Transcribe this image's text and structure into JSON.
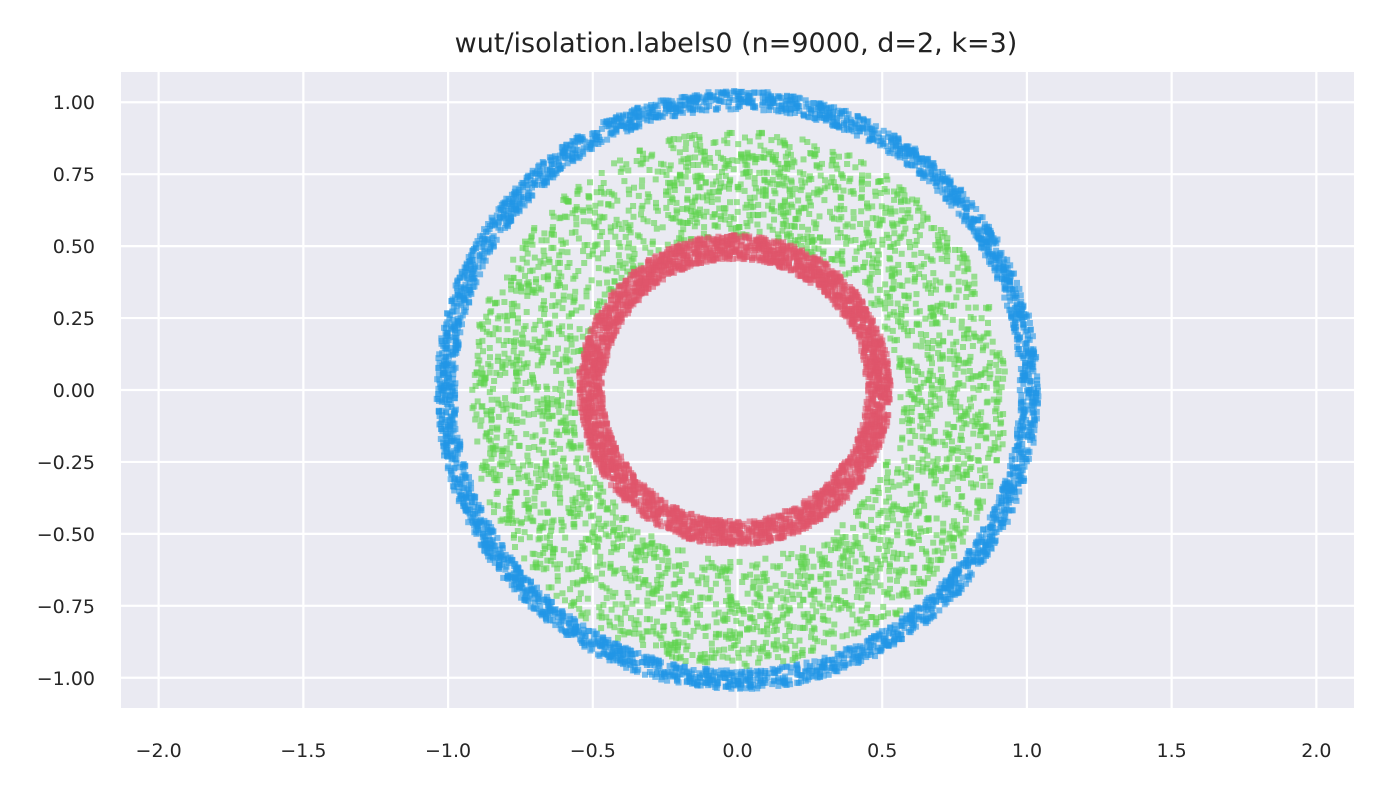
{
  "chart_data": {
    "type": "scatter",
    "title": "wut/isolation.labels0 (n=9000, d=2, k=3)",
    "xlabel": "",
    "ylabel": "",
    "xlim": [
      -2.13,
      2.13
    ],
    "ylim": [
      -1.105,
      1.105
    ],
    "x_ticks": [
      -2.0,
      -1.5,
      -1.0,
      -0.5,
      0.0,
      0.5,
      1.0,
      1.5,
      2.0
    ],
    "x_tick_labels": [
      "−2.0",
      "−1.5",
      "−1.0",
      "−0.5",
      "0.0",
      "0.5",
      "1.0",
      "1.5",
      "2.0"
    ],
    "y_ticks": [
      1.0,
      0.75,
      0.5,
      0.25,
      0.0,
      -0.25,
      -0.5,
      -0.75,
      -1.0
    ],
    "y_tick_labels": [
      "1.00",
      "0.75",
      "0.50",
      "0.25",
      "0.00",
      "−0.25",
      "−0.50",
      "−0.75",
      "−1.00"
    ],
    "grid": true,
    "legend": "none",
    "background_color": "#EAEAF2",
    "grid_color": "#FFFFFF",
    "series": [
      {
        "color": "#2296E6",
        "shape": "ring",
        "center": [
          0.0,
          0.0
        ],
        "radius_inner": 0.975,
        "radius_outer": 1.04,
        "points": 3000
      },
      {
        "color": "#5FD34E",
        "shape": "ring",
        "center": [
          0.0,
          -0.03
        ],
        "radius_inner": 0.56,
        "radius_outer": 0.93,
        "points": 3000
      },
      {
        "color": "#E0556B",
        "shape": "ring",
        "center": [
          -0.01,
          0.0
        ],
        "radius_inner": 0.455,
        "radius_outer": 0.54,
        "points": 3000
      }
    ]
  }
}
